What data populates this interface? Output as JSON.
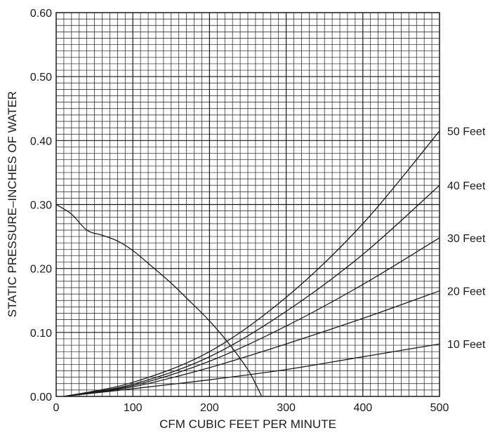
{
  "chart_data": {
    "type": "line",
    "title": "",
    "xlabel": "CFM CUBIC FEET PER MINUTE",
    "ylabel": "STATIC PRESSURE–INCHES OF WATER",
    "xlim": [
      0,
      500
    ],
    "ylim": [
      0,
      0.6
    ],
    "x_ticks": [
      0,
      100,
      200,
      300,
      400,
      500
    ],
    "y_ticks": [
      0,
      0.1,
      0.2,
      0.3,
      0.4,
      0.5,
      0.6
    ],
    "x_tick_labels": [
      "0",
      "100",
      "200",
      "300",
      "400",
      "500"
    ],
    "y_tick_labels": [
      "0.00",
      "0.10",
      "0.20",
      "0.30",
      "0.40",
      "0.50",
      "0.60"
    ],
    "grid": true,
    "series": [
      {
        "name": "10 Feet",
        "x": [
          10,
          100,
          200,
          300,
          400,
          500
        ],
        "y": [
          0.0,
          0.012,
          0.026,
          0.042,
          0.062,
          0.082
        ]
      },
      {
        "name": "20 Feet",
        "x": [
          10,
          100,
          200,
          300,
          400,
          500
        ],
        "y": [
          0.0,
          0.015,
          0.045,
          0.082,
          0.122,
          0.165
        ]
      },
      {
        "name": "30 Feet",
        "x": [
          10,
          100,
          200,
          300,
          400,
          500
        ],
        "y": [
          0.0,
          0.017,
          0.055,
          0.11,
          0.175,
          0.248
        ]
      },
      {
        "name": "40 Feet",
        "x": [
          10,
          100,
          200,
          300,
          400,
          500
        ],
        "y": [
          0.0,
          0.019,
          0.062,
          0.133,
          0.222,
          0.33
        ]
      },
      {
        "name": "50 Feet",
        "x": [
          10,
          100,
          200,
          300,
          400,
          500
        ],
        "y": [
          0.0,
          0.022,
          0.07,
          0.155,
          0.27,
          0.415
        ]
      },
      {
        "name": "",
        "x": [
          0,
          20,
          40,
          60,
          80,
          100,
          125,
          150,
          175,
          200,
          225,
          250,
          260,
          268
        ],
        "y": [
          0.3,
          0.285,
          0.26,
          0.252,
          0.243,
          0.228,
          0.203,
          0.177,
          0.148,
          0.118,
          0.083,
          0.042,
          0.02,
          0.0
        ]
      }
    ]
  }
}
